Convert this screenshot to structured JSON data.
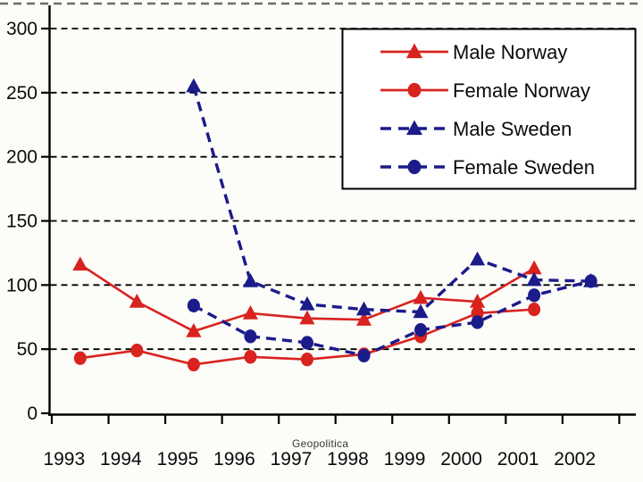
{
  "watermark": "Geopolitica",
  "colors": {
    "norway_red": "#d8231f",
    "sweden_navy": "#1b1b8a",
    "grid": "#000000",
    "axis": "#000000",
    "legend_border": "#000000",
    "legend_bg": "#ffffff",
    "background": "#fcfcf9"
  },
  "chart_data": {
    "type": "line",
    "title": "",
    "xlabel": "",
    "ylabel": "",
    "categories": [
      "1993",
      "1994",
      "1995",
      "1996",
      "1997",
      "1998",
      "1999",
      "2000",
      "2001",
      "2002"
    ],
    "ytick_labels": [
      "0",
      "50",
      "100",
      "150",
      "200",
      "250",
      "300"
    ],
    "yticks": [
      0,
      50,
      100,
      150,
      200,
      250,
      300
    ],
    "ylim": [
      0,
      300
    ],
    "grid": "horizontal-dashed",
    "legend_position": "top-right",
    "series": [
      {
        "name": "Male Norway",
        "color": "#d8231f",
        "line": "solid",
        "marker": "triangle",
        "values": [
          116,
          87,
          64,
          78,
          74,
          73,
          90,
          87,
          113,
          null
        ]
      },
      {
        "name": "Female Norway",
        "color": "#d8231f",
        "line": "solid",
        "marker": "circle",
        "values": [
          43,
          49,
          38,
          44,
          42,
          46,
          60,
          78,
          81,
          null
        ]
      },
      {
        "name": "Male Sweden",
        "color": "#1b1b8a",
        "line": "dashed",
        "marker": "triangle",
        "values": [
          null,
          null,
          255,
          103,
          85,
          81,
          79,
          120,
          104,
          103
        ]
      },
      {
        "name": "Female Sweden",
        "color": "#1b1b8a",
        "line": "dashed",
        "marker": "circle",
        "values": [
          null,
          null,
          84,
          60,
          55,
          45,
          65,
          71,
          92,
          103
        ]
      }
    ]
  }
}
